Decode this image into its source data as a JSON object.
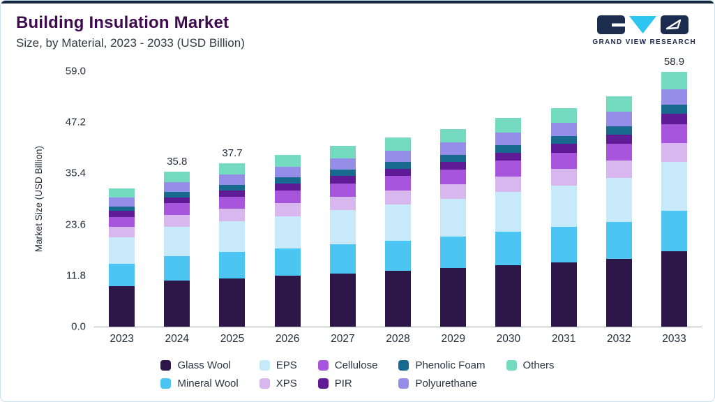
{
  "header": {
    "title": "Building Insulation Market",
    "subtitle": "Size, by Material, 2023 - 2033 (USD Billion)",
    "logo_text": "GRAND VIEW RESEARCH"
  },
  "brand": {
    "accent_navy": "#15273f",
    "logo_navy": "#1b2c4f",
    "logo_cyan": "#2ec6f0",
    "title_purple": "#3e0c4e",
    "card_border": "#c9e2f0"
  },
  "chart_data": {
    "type": "bar",
    "stacked": true,
    "title": "",
    "xlabel": "",
    "ylabel": "Market Size (USD Billion)",
    "ylim": [
      0,
      59
    ],
    "yticks": [
      "59.0",
      "47.2",
      "35.4",
      "23.6",
      "11.8",
      "0.0"
    ],
    "grid": false,
    "legend_position": "bottom",
    "categories": [
      "2023",
      "2024",
      "2025",
      "2026",
      "2027",
      "2028",
      "2029",
      "2030",
      "2031",
      "2032",
      "2033"
    ],
    "series": [
      {
        "name": "Glass Wool",
        "color": "#2d1648",
        "values": [
          9.4,
          10.6,
          11.1,
          11.7,
          12.3,
          12.9,
          13.5,
          14.2,
          14.9,
          15.7,
          17.4
        ]
      },
      {
        "name": "Mineral Wool",
        "color": "#4cc5f2",
        "values": [
          5.1,
          5.7,
          6.1,
          6.3,
          6.7,
          7.0,
          7.3,
          7.7,
          8.1,
          8.5,
          9.4
        ]
      },
      {
        "name": "EPS",
        "color": "#c8e9f9",
        "values": [
          6.1,
          6.8,
          7.2,
          7.5,
          7.9,
          8.3,
          8.7,
          9.2,
          9.6,
          10.1,
          11.2
        ]
      },
      {
        "name": "XPS",
        "color": "#d8b6ee",
        "values": [
          2.4,
          2.7,
          2.8,
          3.0,
          3.1,
          3.3,
          3.4,
          3.6,
          3.8,
          4.0,
          4.4
        ]
      },
      {
        "name": "Cellulose",
        "color": "#a855dd",
        "values": [
          2.4,
          2.7,
          2.8,
          3.0,
          3.1,
          3.3,
          3.4,
          3.6,
          3.8,
          4.0,
          4.4
        ]
      },
      {
        "name": "PIR",
        "color": "#5f1a96",
        "values": [
          1.3,
          1.4,
          1.5,
          1.6,
          1.7,
          1.7,
          1.8,
          1.9,
          2.0,
          2.1,
          2.3
        ]
      },
      {
        "name": "Phenolic Foam",
        "color": "#17698e",
        "values": [
          1.1,
          1.3,
          1.3,
          1.4,
          1.5,
          1.5,
          1.6,
          1.7,
          1.8,
          1.9,
          2.1
        ]
      },
      {
        "name": "Polyurethane",
        "color": "#958ee8",
        "values": [
          2.0,
          2.2,
          2.3,
          2.5,
          2.6,
          2.7,
          2.8,
          3.0,
          3.1,
          3.3,
          3.7
        ]
      },
      {
        "name": "Others",
        "color": "#74dbc1",
        "values": [
          2.2,
          2.4,
          2.6,
          2.7,
          2.8,
          3.0,
          3.1,
          3.3,
          3.4,
          3.6,
          4.0
        ]
      }
    ],
    "bar_total_labels": {
      "2024": "35.8",
      "2025": "37.7",
      "2033": "58.9"
    }
  }
}
